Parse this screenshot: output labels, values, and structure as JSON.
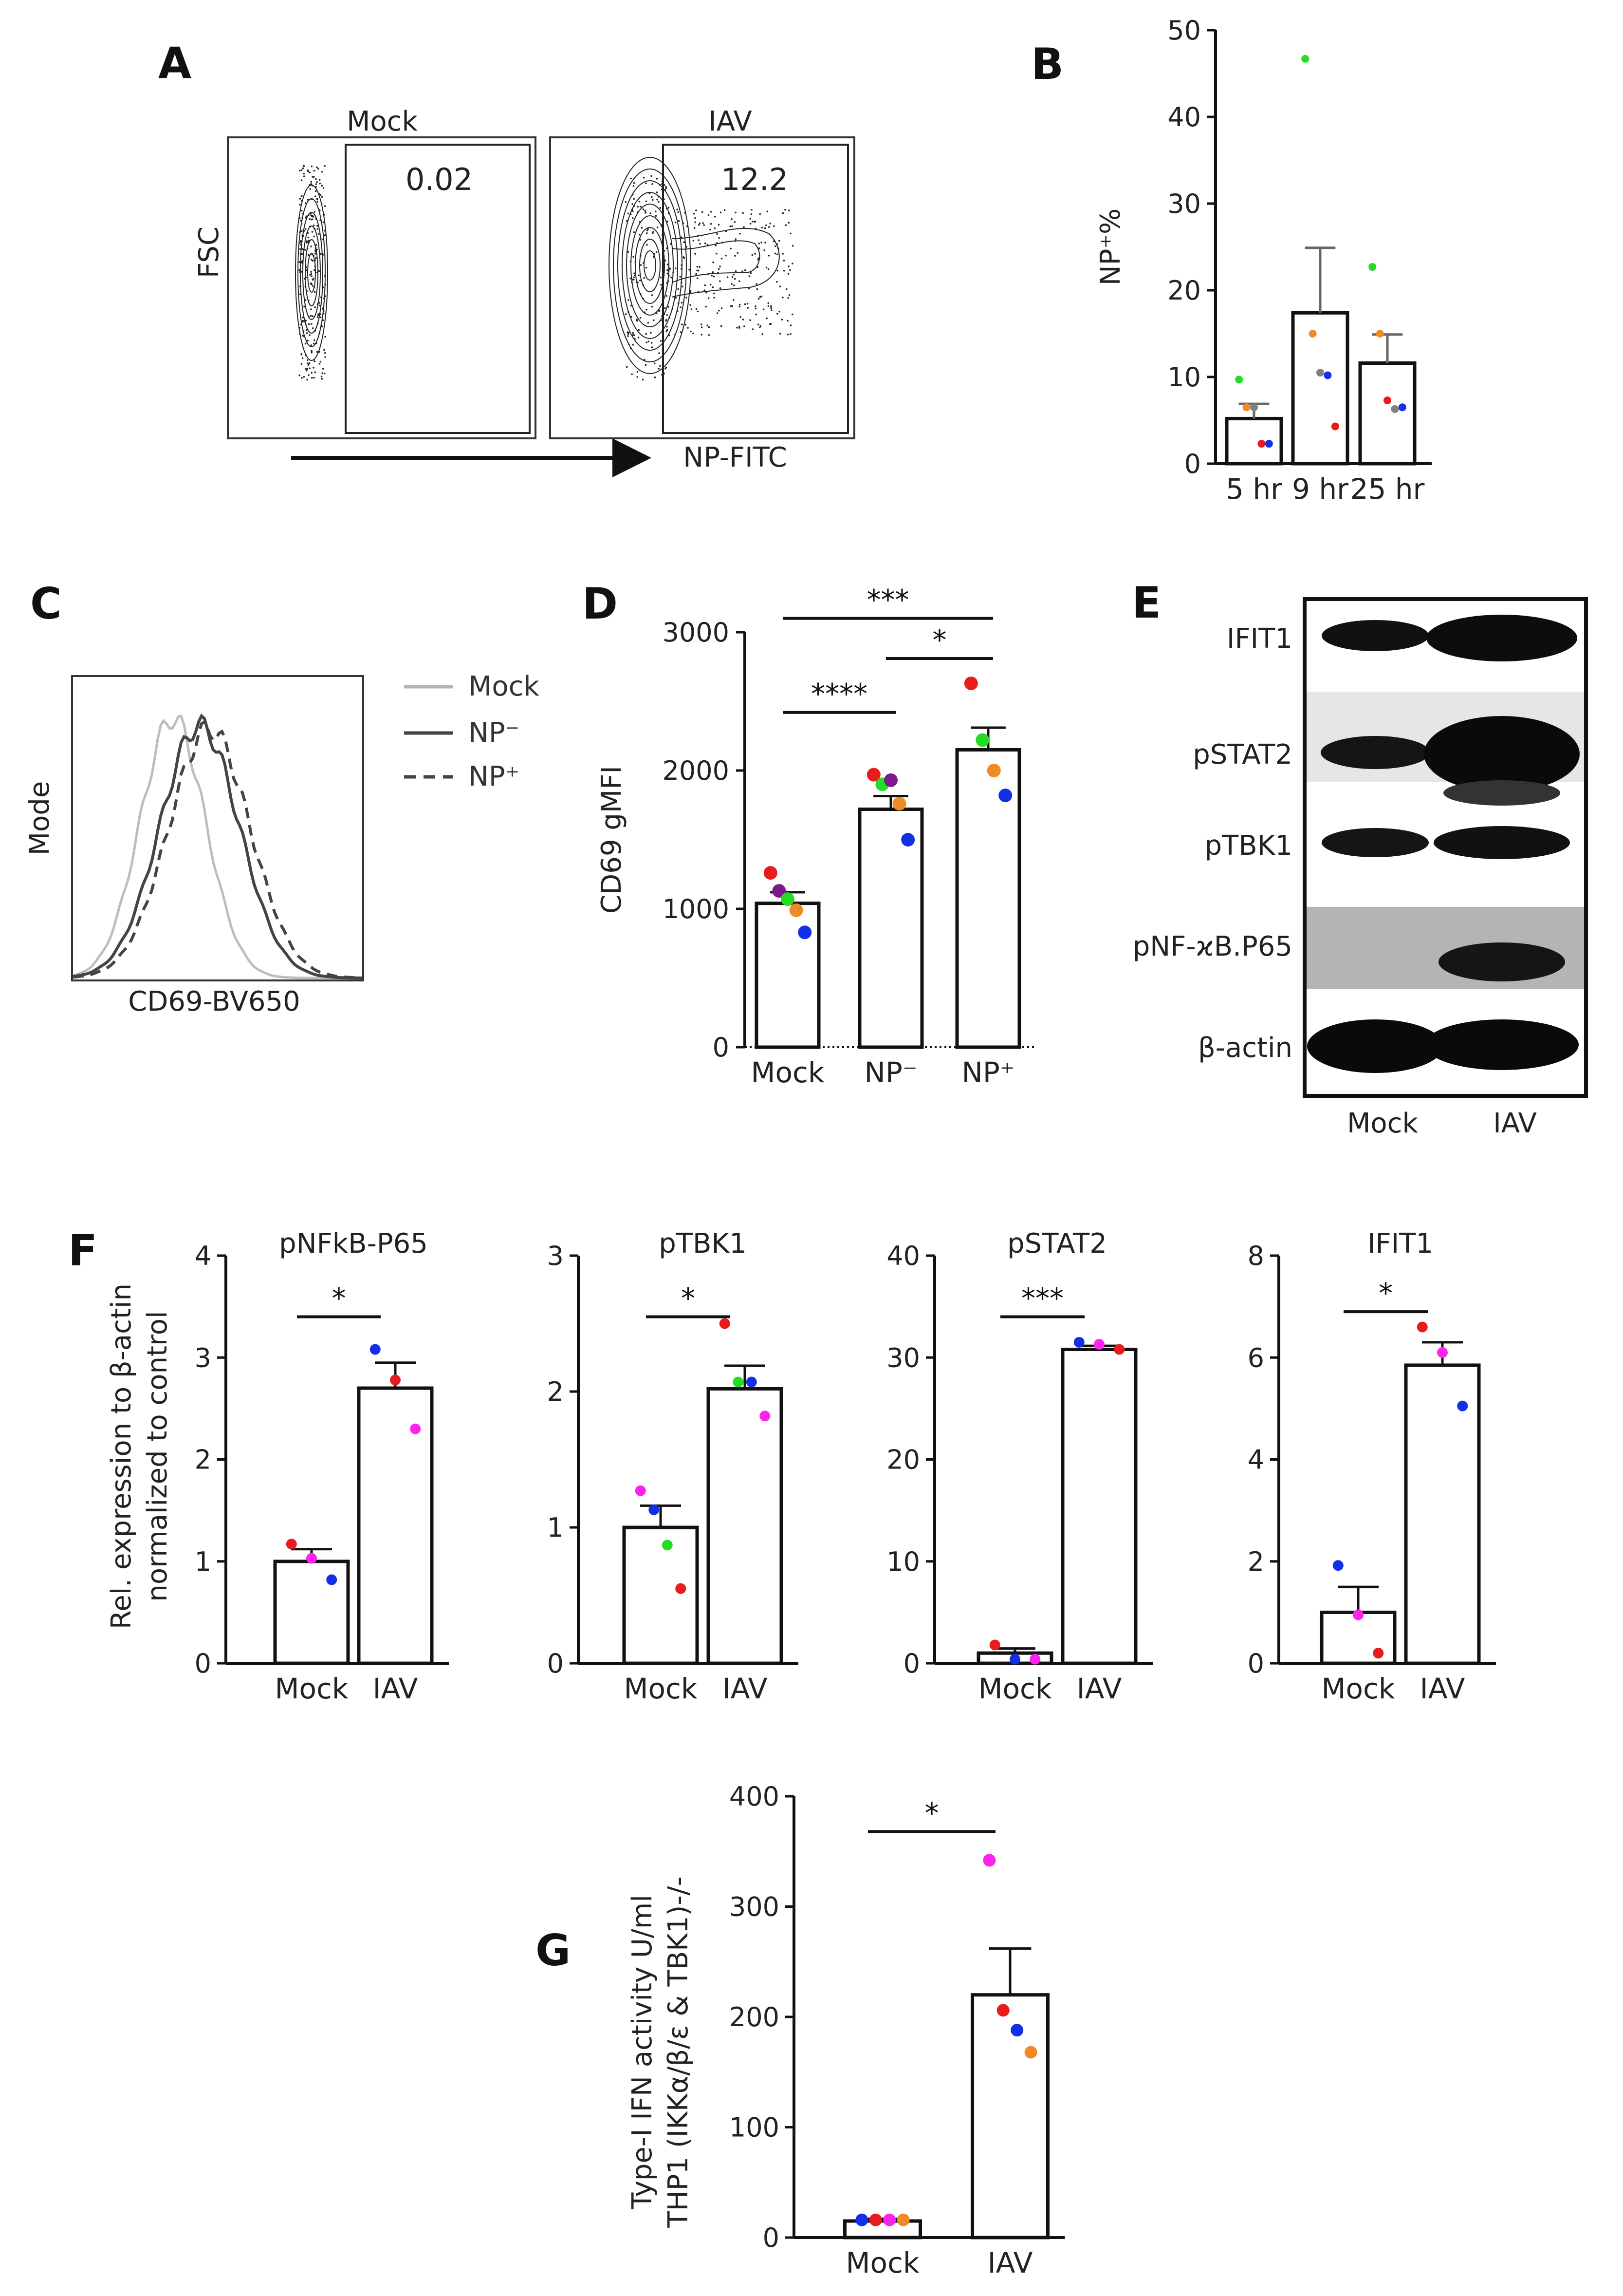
{
  "colors": {
    "red": "#e81c1c",
    "blue": "#1430e6",
    "green": "#22dd22",
    "purple": "#7b1a8a",
    "orange": "#f08a24",
    "gray": "#808080",
    "magenta": "#ff22ee",
    "black": "#111111"
  },
  "panels": {
    "A": {
      "letter": "A",
      "plots": [
        {
          "title": "Mock",
          "gate_value": "0.02"
        },
        {
          "title": "IAV",
          "gate_value": "12.2"
        }
      ],
      "y_axis": "FSC",
      "x_axis": "NP-FITC"
    },
    "C": {
      "letter": "C",
      "y_axis": "Mode",
      "x_axis": "CD69-BV650",
      "legend": [
        {
          "label": "Mock",
          "color": "#b5b5b5",
          "dash": "solid"
        },
        {
          "label": "NP⁻",
          "color": "#444444",
          "dash": "solid"
        },
        {
          "label": "NP⁺",
          "color": "#444444",
          "dash": "dashed"
        }
      ]
    },
    "E": {
      "letter": "E",
      "bands": [
        "IFIT1",
        "pSTAT2",
        "pTBK1",
        "pNF-ϰB.P65",
        "β-actin"
      ],
      "lanes": [
        "Mock",
        "IAV"
      ]
    },
    "F": {
      "letter": "F",
      "ylabel_line1": "Rel. expression to β-actin",
      "ylabel_line2": "normalized to control"
    },
    "G": {
      "letter": "G",
      "ylabel_line1": "Type-I IFN activity U/ml",
      "ylabel_line2": "THP1 (IKKα/β/ε & TBK1)-/-"
    }
  },
  "chart_data": [
    {
      "id": "B",
      "letter": "B",
      "type": "bar",
      "categories": [
        "5 hr",
        "9 hr",
        "25 hr"
      ],
      "values": [
        5.2,
        17.4,
        11.6
      ],
      "errors": [
        1.7,
        7.5,
        3.3
      ],
      "ylabel": "NP⁺%",
      "ylim": [
        0,
        50
      ],
      "yticks": [
        0,
        10,
        20,
        30,
        40,
        50
      ],
      "points": [
        [
          {
            "v": 9.7,
            "c": "green"
          },
          {
            "v": 6.5,
            "c": "orange"
          },
          {
            "v": 6.5,
            "c": "gray"
          },
          {
            "v": 2.3,
            "c": "red"
          },
          {
            "v": 2.3,
            "c": "blue"
          }
        ],
        [
          {
            "v": 46.7,
            "c": "green"
          },
          {
            "v": 15.0,
            "c": "orange"
          },
          {
            "v": 10.5,
            "c": "gray"
          },
          {
            "v": 10.2,
            "c": "blue"
          },
          {
            "v": 4.3,
            "c": "red"
          }
        ],
        [
          {
            "v": 22.7,
            "c": "green"
          },
          {
            "v": 15.0,
            "c": "orange"
          },
          {
            "v": 7.3,
            "c": "red"
          },
          {
            "v": 6.3,
            "c": "gray"
          },
          {
            "v": 6.5,
            "c": "blue"
          }
        ]
      ],
      "significance": []
    },
    {
      "id": "D",
      "letter": "D",
      "type": "bar",
      "categories": [
        "Mock",
        "NP⁻",
        "NP⁺"
      ],
      "values": [
        1040,
        1720,
        2150
      ],
      "errors": [
        80,
        95,
        160
      ],
      "ylabel": "CD69 gMFI",
      "ylim": [
        0,
        3000
      ],
      "yticks": [
        0,
        1000,
        2000,
        3000
      ],
      "points": [
        [
          {
            "v": 1260,
            "c": "red"
          },
          {
            "v": 1130,
            "c": "purple"
          },
          {
            "v": 1070,
            "c": "green"
          },
          {
            "v": 990,
            "c": "orange"
          },
          {
            "v": 830,
            "c": "blue"
          }
        ],
        [
          {
            "v": 1970,
            "c": "red"
          },
          {
            "v": 1900,
            "c": "green"
          },
          {
            "v": 1930,
            "c": "purple"
          },
          {
            "v": 1760,
            "c": "orange"
          },
          {
            "v": 1500,
            "c": "blue"
          }
        ],
        [
          {
            "v": 2630,
            "c": "red"
          },
          {
            "v": 2220,
            "c": "green"
          },
          {
            "v": 2000,
            "c": "orange"
          },
          {
            "v": 1820,
            "c": "blue"
          }
        ]
      ],
      "significance": [
        {
          "from": 0,
          "to": 2,
          "label": "***",
          "y": 3100
        },
        {
          "from": 1,
          "to": 2,
          "label": "*",
          "y": 2810
        },
        {
          "from": 0,
          "to": 1,
          "label": "****",
          "y": 2420
        }
      ]
    },
    {
      "id": "F1",
      "type": "bar",
      "title": "pNFkB-P65",
      "categories": [
        "Mock",
        "IAV"
      ],
      "values": [
        1.0,
        2.7
      ],
      "errors": [
        0.12,
        0.25
      ],
      "ylim": [
        0,
        4
      ],
      "yticks": [
        0,
        1,
        2,
        3,
        4
      ],
      "points": [
        [
          {
            "v": 1.17,
            "c": "red"
          },
          {
            "v": 1.03,
            "c": "magenta"
          },
          {
            "v": 0.82,
            "c": "blue"
          }
        ],
        [
          {
            "v": 3.08,
            "c": "blue"
          },
          {
            "v": 2.78,
            "c": "red"
          },
          {
            "v": 2.3,
            "c": "magenta"
          }
        ]
      ],
      "significance": [
        {
          "from": 0,
          "to": 1,
          "label": "*",
          "y": 3.4
        }
      ]
    },
    {
      "id": "F2",
      "type": "bar",
      "title": "pTBK1",
      "categories": [
        "Mock",
        "IAV"
      ],
      "values": [
        1.0,
        2.02
      ],
      "errors": [
        0.16,
        0.17
      ],
      "ylim": [
        0,
        3
      ],
      "yticks": [
        0,
        1,
        2,
        3
      ],
      "points": [
        [
          {
            "v": 1.27,
            "c": "magenta"
          },
          {
            "v": 1.13,
            "c": "blue"
          },
          {
            "v": 0.87,
            "c": "green"
          },
          {
            "v": 0.55,
            "c": "red"
          }
        ],
        [
          {
            "v": 2.5,
            "c": "red"
          },
          {
            "v": 2.07,
            "c": "green"
          },
          {
            "v": 2.07,
            "c": "blue"
          },
          {
            "v": 1.82,
            "c": "magenta"
          }
        ]
      ],
      "significance": [
        {
          "from": 0,
          "to": 1,
          "label": "*",
          "y": 2.55
        }
      ]
    },
    {
      "id": "F3",
      "type": "bar",
      "title": "pSTAT2",
      "categories": [
        "Mock",
        "IAV"
      ],
      "values": [
        1.0,
        30.8
      ],
      "errors": [
        0.45,
        0.35
      ],
      "ylim": [
        0,
        40
      ],
      "yticks": [
        0,
        10,
        20,
        30,
        40
      ],
      "points": [
        [
          {
            "v": 1.8,
            "c": "red"
          },
          {
            "v": 0.4,
            "c": "blue"
          },
          {
            "v": 0.4,
            "c": "magenta"
          }
        ],
        [
          {
            "v": 31.5,
            "c": "blue"
          },
          {
            "v": 31.3,
            "c": "magenta"
          },
          {
            "v": 30.8,
            "c": "red"
          }
        ]
      ],
      "significance": [
        {
          "from": 0,
          "to": 1,
          "label": "***",
          "y": 34
        }
      ]
    },
    {
      "id": "F4",
      "type": "bar",
      "title": "IFIT1",
      "categories": [
        "Mock",
        "IAV"
      ],
      "values": [
        1.0,
        5.85
      ],
      "errors": [
        0.5,
        0.45
      ],
      "ylim": [
        0,
        8
      ],
      "yticks": [
        0,
        2,
        4,
        6,
        8
      ],
      "points": [
        [
          {
            "v": 1.92,
            "c": "blue"
          },
          {
            "v": 0.95,
            "c": "magenta"
          },
          {
            "v": 0.2,
            "c": "red"
          }
        ],
        [
          {
            "v": 6.6,
            "c": "red"
          },
          {
            "v": 6.1,
            "c": "magenta"
          },
          {
            "v": 5.05,
            "c": "blue"
          }
        ]
      ],
      "significance": [
        {
          "from": 0,
          "to": 1,
          "label": "*",
          "y": 6.9
        }
      ]
    },
    {
      "id": "G",
      "type": "bar",
      "categories": [
        "Mock",
        "IAV"
      ],
      "values": [
        15,
        220
      ],
      "errors": [
        2,
        42
      ],
      "ylim": [
        0,
        400
      ],
      "yticks": [
        0,
        100,
        200,
        300,
        400
      ],
      "points": [
        [
          {
            "v": 16,
            "c": "blue"
          },
          {
            "v": 16,
            "c": "red"
          },
          {
            "v": 16,
            "c": "magenta"
          },
          {
            "v": 16,
            "c": "orange"
          }
        ],
        [
          {
            "v": 342,
            "c": "magenta"
          },
          {
            "v": 206,
            "c": "red"
          },
          {
            "v": 188,
            "c": "blue"
          },
          {
            "v": 168,
            "c": "orange"
          }
        ]
      ],
      "significance": [
        {
          "from": 0,
          "to": 1,
          "label": "*",
          "y": 368
        }
      ]
    }
  ]
}
